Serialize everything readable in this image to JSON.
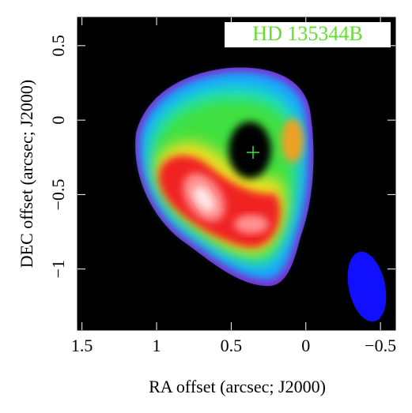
{
  "chart_data": {
    "type": "image",
    "title": "HD 135344B",
    "x_label": "RA offset (arcsec; J2000)",
    "y_label": "DEC offset (arcsec; J2000)",
    "xlim": [
      1.53,
      -0.6
    ],
    "ylim": [
      -1.41,
      0.69
    ],
    "xticks": [
      1.5,
      1,
      0.5,
      0,
      {
        "value": -0.5,
        "label": "−0.5"
      }
    ],
    "yticks": [
      {
        "value": -1,
        "label": "−1"
      },
      {
        "value": -0.5,
        "label": "−0.5"
      },
      0,
      0.5
    ]
  }
}
